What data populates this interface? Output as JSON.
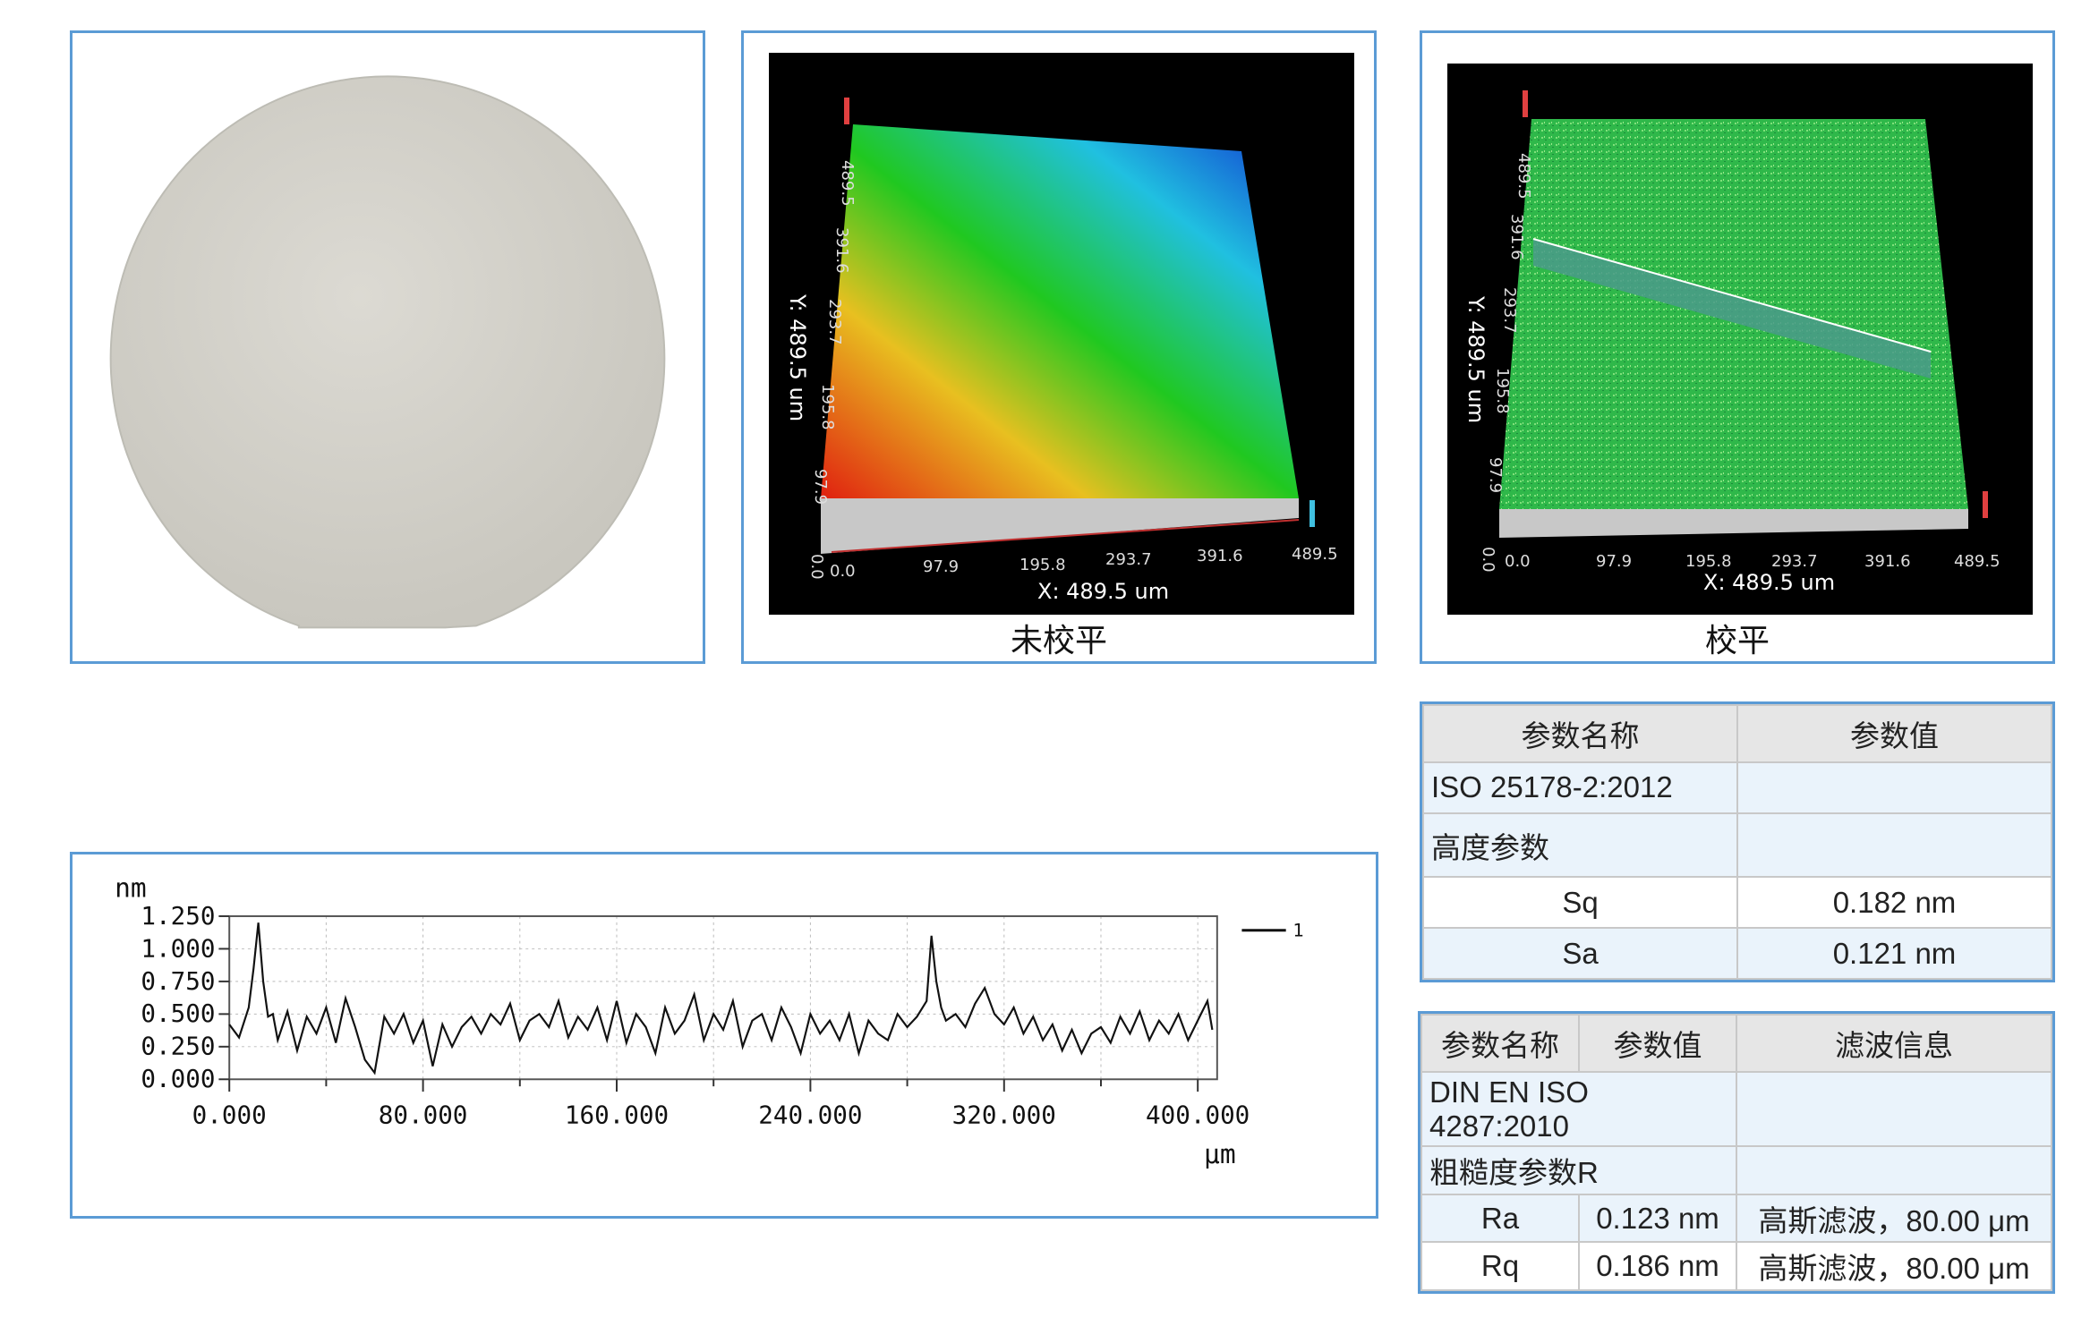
{
  "panels": {
    "wafer": {
      "icon": "wafer-photo"
    },
    "unleveled": {
      "caption": "未校平",
      "y_axis_label": "Y: 489.5 um",
      "x_axis_label": "X: 489.5 um",
      "y_ticks": [
        "0.0",
        "97.9",
        "195.8",
        "293.7",
        "391.6",
        "489.5"
      ],
      "x_ticks": [
        "0.0",
        "97.9",
        "195.8",
        "293.7",
        "391.6",
        "489.5"
      ],
      "colormap": [
        "#e02010",
        "#e8c020",
        "#20c820",
        "#20c0e0",
        "#1030d0"
      ]
    },
    "leveled": {
      "caption": "校平",
      "y_axis_label": "Y: 489.5 um",
      "x_axis_label": "X: 489.5 um",
      "y_ticks": [
        "0.0",
        "97.9",
        "195.8",
        "293.7",
        "391.6",
        "489.5"
      ],
      "x_ticks": [
        "0.0",
        "97.9",
        "195.8",
        "293.7",
        "391.6",
        "489.5"
      ],
      "surface_color": "#2fb84a"
    }
  },
  "chart_data": {
    "type": "line",
    "ylabel": "nm",
    "xlabel": "μm",
    "ylim": [
      0,
      1.25
    ],
    "xlim": [
      0,
      408
    ],
    "y_ticks": [
      "0.000",
      "0.250",
      "0.500",
      "0.750",
      "1.000",
      "1.250"
    ],
    "x_ticks": [
      "0.000",
      "80.000",
      "160.000",
      "240.000",
      "320.000",
      "400.000"
    ],
    "grid": true,
    "legend": "top-right",
    "series": [
      {
        "name": "1",
        "x": [
          0,
          4,
          8,
          10,
          12,
          14,
          16,
          18,
          20,
          24,
          28,
          32,
          36,
          40,
          44,
          48,
          52,
          56,
          60,
          64,
          68,
          72,
          76,
          80,
          84,
          88,
          92,
          96,
          100,
          104,
          108,
          112,
          116,
          120,
          124,
          128,
          132,
          136,
          140,
          144,
          148,
          152,
          156,
          160,
          164,
          168,
          172,
          176,
          180,
          184,
          188,
          192,
          196,
          200,
          204,
          208,
          212,
          216,
          220,
          224,
          228,
          232,
          236,
          240,
          244,
          248,
          252,
          256,
          260,
          264,
          268,
          272,
          276,
          280,
          284,
          288,
          290,
          292,
          294,
          296,
          300,
          304,
          308,
          312,
          316,
          320,
          324,
          328,
          332,
          336,
          340,
          344,
          348,
          352,
          356,
          360,
          364,
          368,
          372,
          376,
          380,
          384,
          388,
          392,
          396,
          400,
          404,
          406
        ],
        "values": [
          0.42,
          0.32,
          0.55,
          0.85,
          1.2,
          0.75,
          0.48,
          0.5,
          0.3,
          0.52,
          0.22,
          0.48,
          0.35,
          0.55,
          0.28,
          0.62,
          0.4,
          0.15,
          0.05,
          0.48,
          0.35,
          0.5,
          0.28,
          0.45,
          0.1,
          0.42,
          0.25,
          0.4,
          0.48,
          0.35,
          0.5,
          0.42,
          0.58,
          0.3,
          0.45,
          0.5,
          0.4,
          0.6,
          0.32,
          0.48,
          0.38,
          0.55,
          0.3,
          0.6,
          0.28,
          0.5,
          0.4,
          0.2,
          0.55,
          0.35,
          0.45,
          0.65,
          0.3,
          0.5,
          0.38,
          0.6,
          0.25,
          0.45,
          0.5,
          0.3,
          0.55,
          0.4,
          0.2,
          0.5,
          0.35,
          0.45,
          0.3,
          0.5,
          0.2,
          0.45,
          0.35,
          0.3,
          0.5,
          0.4,
          0.48,
          0.6,
          1.1,
          0.75,
          0.55,
          0.45,
          0.5,
          0.4,
          0.58,
          0.7,
          0.5,
          0.42,
          0.55,
          0.35,
          0.48,
          0.3,
          0.42,
          0.22,
          0.38,
          0.2,
          0.35,
          0.4,
          0.28,
          0.48,
          0.35,
          0.52,
          0.3,
          0.45,
          0.35,
          0.5,
          0.3,
          0.45,
          0.6,
          0.38
        ]
      }
    ]
  },
  "table1": {
    "headers": [
      "参数名称",
      "参数值"
    ],
    "rows": [
      [
        "ISO 25178-2:2012",
        ""
      ],
      [
        "高度参数",
        ""
      ],
      [
        "Sq",
        "0.182 nm"
      ],
      [
        "Sa",
        "0.121 nm"
      ]
    ]
  },
  "table2": {
    "headers": [
      "参数名称",
      "参数值",
      "滤波信息"
    ],
    "standard": "DIN EN ISO 4287:2010",
    "group": "粗糙度参数R",
    "rows": [
      [
        "Ra",
        "0.123 nm",
        "高斯滤波，80.00 μm"
      ],
      [
        "Rq",
        "0.186 nm",
        "高斯滤波，80.00 μm"
      ]
    ]
  }
}
